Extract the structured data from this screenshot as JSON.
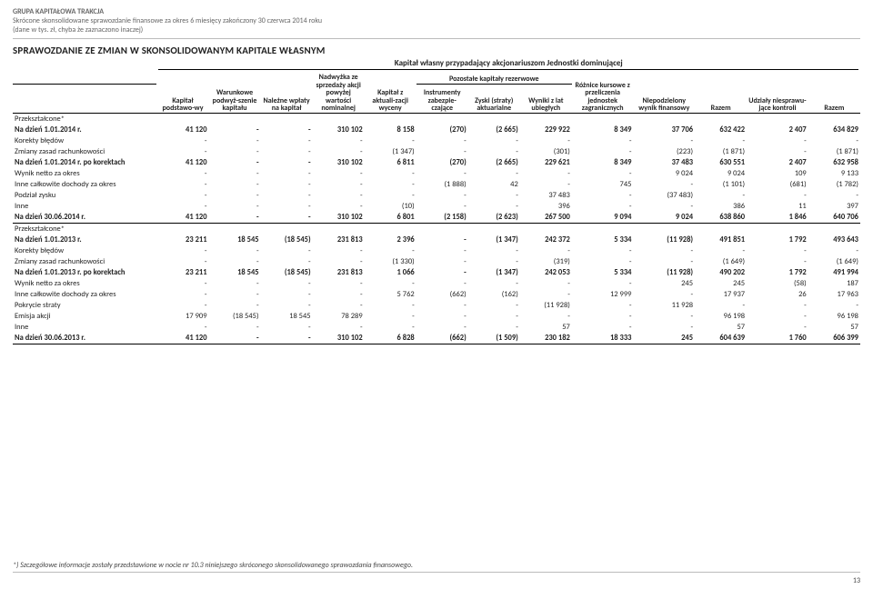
{
  "header": {
    "company": "GRUPA KAPITAŁOWA TRAKCJA",
    "line2": "Skrócone skonsolidowane sprawozdanie finansowe za okres 6 miesięcy zakończony 30 czerwca 2014 roku",
    "line3": "(dane w tys. zł, chyba że zaznaczono inaczej)"
  },
  "title": "SPRAWOZDANIE ZE ZMIAN W SKONSOLIDOWANYM KAPITALE WŁASNYM",
  "superHeader": "Kapitał własny przypadający akcjonariuszom Jednostki dominującej",
  "cols": {
    "c1": "Kapitał podstawo-wy",
    "c2": "Warunkowe podwyż-szenie kapitału",
    "c3": "Należne wpłaty na kapitał",
    "c4": "Nadwyżka ze sprzedaży akcji powyżej wartości nominalnej",
    "c5": "Kapitał z aktuali-zacji wyceny",
    "c6": "Pozostałe kapitały rezerwowe",
    "c9": "Różnice kursowe z przeliczenia jednostek zagranicznych",
    "c10": "Niepodzielony wynik finansowy",
    "c11": "Razem",
    "c12": "Udziały niesprawu-jące kontroli",
    "c13": "Razem"
  },
  "subcols": {
    "s1": "Instrumenty zabezpie-czające",
    "s2": "Zyski (straty) aktuarialne",
    "s3": "Wyniki z lat ubiegłych"
  },
  "sectionA": {
    "label": "Przekształcone*",
    "rows": [
      {
        "label": "Na dzień 1.01.2014 r.",
        "bold": true,
        "v": [
          "41 120",
          "-",
          "-",
          "310 102",
          "8 158",
          "(270)",
          "(2 665)",
          "229 922",
          "8 349",
          "37 706",
          "632 422",
          "2 407",
          "634 829"
        ]
      },
      {
        "label": "Korekty błędów",
        "v": [
          "-",
          "-",
          "-",
          "-",
          "-",
          "-",
          "-",
          "-",
          "-",
          "-",
          "-",
          "-",
          "-"
        ]
      },
      {
        "label": "Zmiany zasad rachunkowości",
        "v": [
          "-",
          "-",
          "-",
          "-",
          "(1 347)",
          "-",
          "-",
          "(301)",
          "-",
          "(223)",
          "(1 871)",
          "-",
          "(1 871)"
        ]
      },
      {
        "label": "Na dzień 1.01.2014 r. po korektach",
        "bold": true,
        "v": [
          "41 120",
          "-",
          "-",
          "310 102",
          "6 811",
          "(270)",
          "(2 665)",
          "229 621",
          "8 349",
          "37 483",
          "630 551",
          "2 407",
          "632 958"
        ]
      },
      {
        "label": "Wynik netto za okres",
        "v": [
          "-",
          "-",
          "-",
          "-",
          "-",
          "-",
          "-",
          "-",
          "-",
          "9 024",
          "9 024",
          "109",
          "9 133"
        ]
      },
      {
        "label": "Inne całkowite dochody za okres",
        "v": [
          "-",
          "-",
          "-",
          "-",
          "-",
          "(1 888)",
          "42",
          "-",
          "745",
          "-",
          "(1 101)",
          "(681)",
          "(1 782)"
        ]
      },
      {
        "label": "Podział zysku",
        "v": [
          "-",
          "-",
          "-",
          "-",
          "-",
          "-",
          "-",
          "37 483",
          "-",
          "(37 483)",
          "-",
          "-",
          "-"
        ]
      },
      {
        "label": "Inne",
        "v": [
          "-",
          "-",
          "-",
          "-",
          "(10)",
          "-",
          "-",
          "396",
          "-",
          "-",
          "386",
          "11",
          "397"
        ]
      },
      {
        "label": "Na dzień 30.06.2014 r.",
        "bold": true,
        "underline": true,
        "v": [
          "41 120",
          "-",
          "-",
          "310 102",
          "6 801",
          "(2 158)",
          "(2 623)",
          "267 500",
          "9 094",
          "9 024",
          "638 860",
          "1 846",
          "640 706"
        ]
      }
    ]
  },
  "sectionB": {
    "label": "Przekształcone*",
    "rows": [
      {
        "label": "Na dzień 1.01.2013 r.",
        "bold": true,
        "v": [
          "23 211",
          "18 545",
          "(18 545)",
          "231 813",
          "2 396",
          "-",
          "(1 347)",
          "242 372",
          "5 334",
          "(11 928)",
          "491 851",
          "1 792",
          "493 643"
        ]
      },
      {
        "label": "Korekty błędów",
        "v": [
          "-",
          "-",
          "-",
          "-",
          "-",
          "-",
          "-",
          "-",
          "-",
          "-",
          "-",
          "-",
          "-"
        ]
      },
      {
        "label": "Zmiany zasad rachunkowości",
        "v": [
          "-",
          "-",
          "-",
          "-",
          "(1 330)",
          "-",
          "-",
          "(319)",
          "-",
          "-",
          "(1 649)",
          "-",
          "(1 649)"
        ]
      },
      {
        "label": "Na dzień 1.01.2013 r. po korektach",
        "bold": true,
        "v": [
          "23 211",
          "18 545",
          "(18 545)",
          "231 813",
          "1 066",
          "-",
          "(1 347)",
          "242 053",
          "5 334",
          "(11 928)",
          "490 202",
          "1 792",
          "491 994"
        ]
      },
      {
        "label": "Wynik netto za okres",
        "v": [
          "-",
          "-",
          "-",
          "-",
          "-",
          "-",
          "-",
          "-",
          "-",
          "245",
          "245",
          "(58)",
          "187"
        ]
      },
      {
        "label": "Inne całkowite dochody za okres",
        "v": [
          "-",
          "-",
          "-",
          "-",
          "5 762",
          "(662)",
          "(162)",
          "-",
          "12 999",
          "-",
          "17 937",
          "26",
          "17 963"
        ]
      },
      {
        "label": "Pokrycie straty",
        "v": [
          "-",
          "-",
          "-",
          "-",
          "-",
          "-",
          "-",
          "(11 928)",
          "-",
          "11 928",
          "-",
          "-",
          "-"
        ]
      },
      {
        "label": "Emisja akcji",
        "v": [
          "17 909",
          "(18 545)",
          "18 545",
          "78 289",
          "-",
          "-",
          "-",
          "-",
          "-",
          "-",
          "96 198",
          "-",
          "96 198"
        ]
      },
      {
        "label": "Inne",
        "v": [
          "-",
          "-",
          "-",
          "-",
          "-",
          "-",
          "-",
          "57",
          "-",
          "-",
          "57",
          "-",
          "57"
        ]
      },
      {
        "label": "Na dzień 30.06.2013 r.",
        "bold": true,
        "underline": true,
        "v": [
          "41 120",
          "-",
          "-",
          "310 102",
          "6 828",
          "(662)",
          "(1 509)",
          "230 182",
          "18 333",
          "245",
          "604 639",
          "1 760",
          "606 399"
        ]
      }
    ]
  },
  "footnote": "*) Szczegółowe informacje zostały przedstawione w nocie nr 10.3 niniejszego skróconego skonsolidowanego sprawozdania finansowego.",
  "pageNum": "13"
}
